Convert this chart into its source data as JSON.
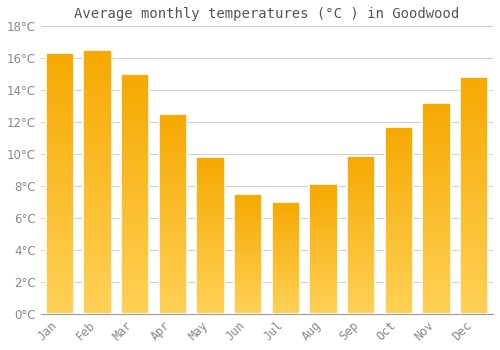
{
  "title": "Average monthly temperatures (°C ) in Goodwood",
  "months": [
    "Jan",
    "Feb",
    "Mar",
    "Apr",
    "May",
    "Jun",
    "Jul",
    "Aug",
    "Sep",
    "Oct",
    "Nov",
    "Dec"
  ],
  "values": [
    16.3,
    16.5,
    15.0,
    12.5,
    9.8,
    7.5,
    7.0,
    8.1,
    9.9,
    11.7,
    13.2,
    14.8
  ],
  "bar_color_top": "#F5A800",
  "bar_color_bottom": "#FFD055",
  "bar_edge_color": "#FFFFFF",
  "background_color": "#FFFFFF",
  "grid_color": "#CCCCCC",
  "tick_color": "#888888",
  "title_color": "#555555",
  "ylim": [
    0,
    18
  ],
  "yticks": [
    0,
    2,
    4,
    6,
    8,
    10,
    12,
    14,
    16,
    18
  ],
  "title_fontsize": 10,
  "tick_fontsize": 8.5,
  "bar_width": 0.75
}
